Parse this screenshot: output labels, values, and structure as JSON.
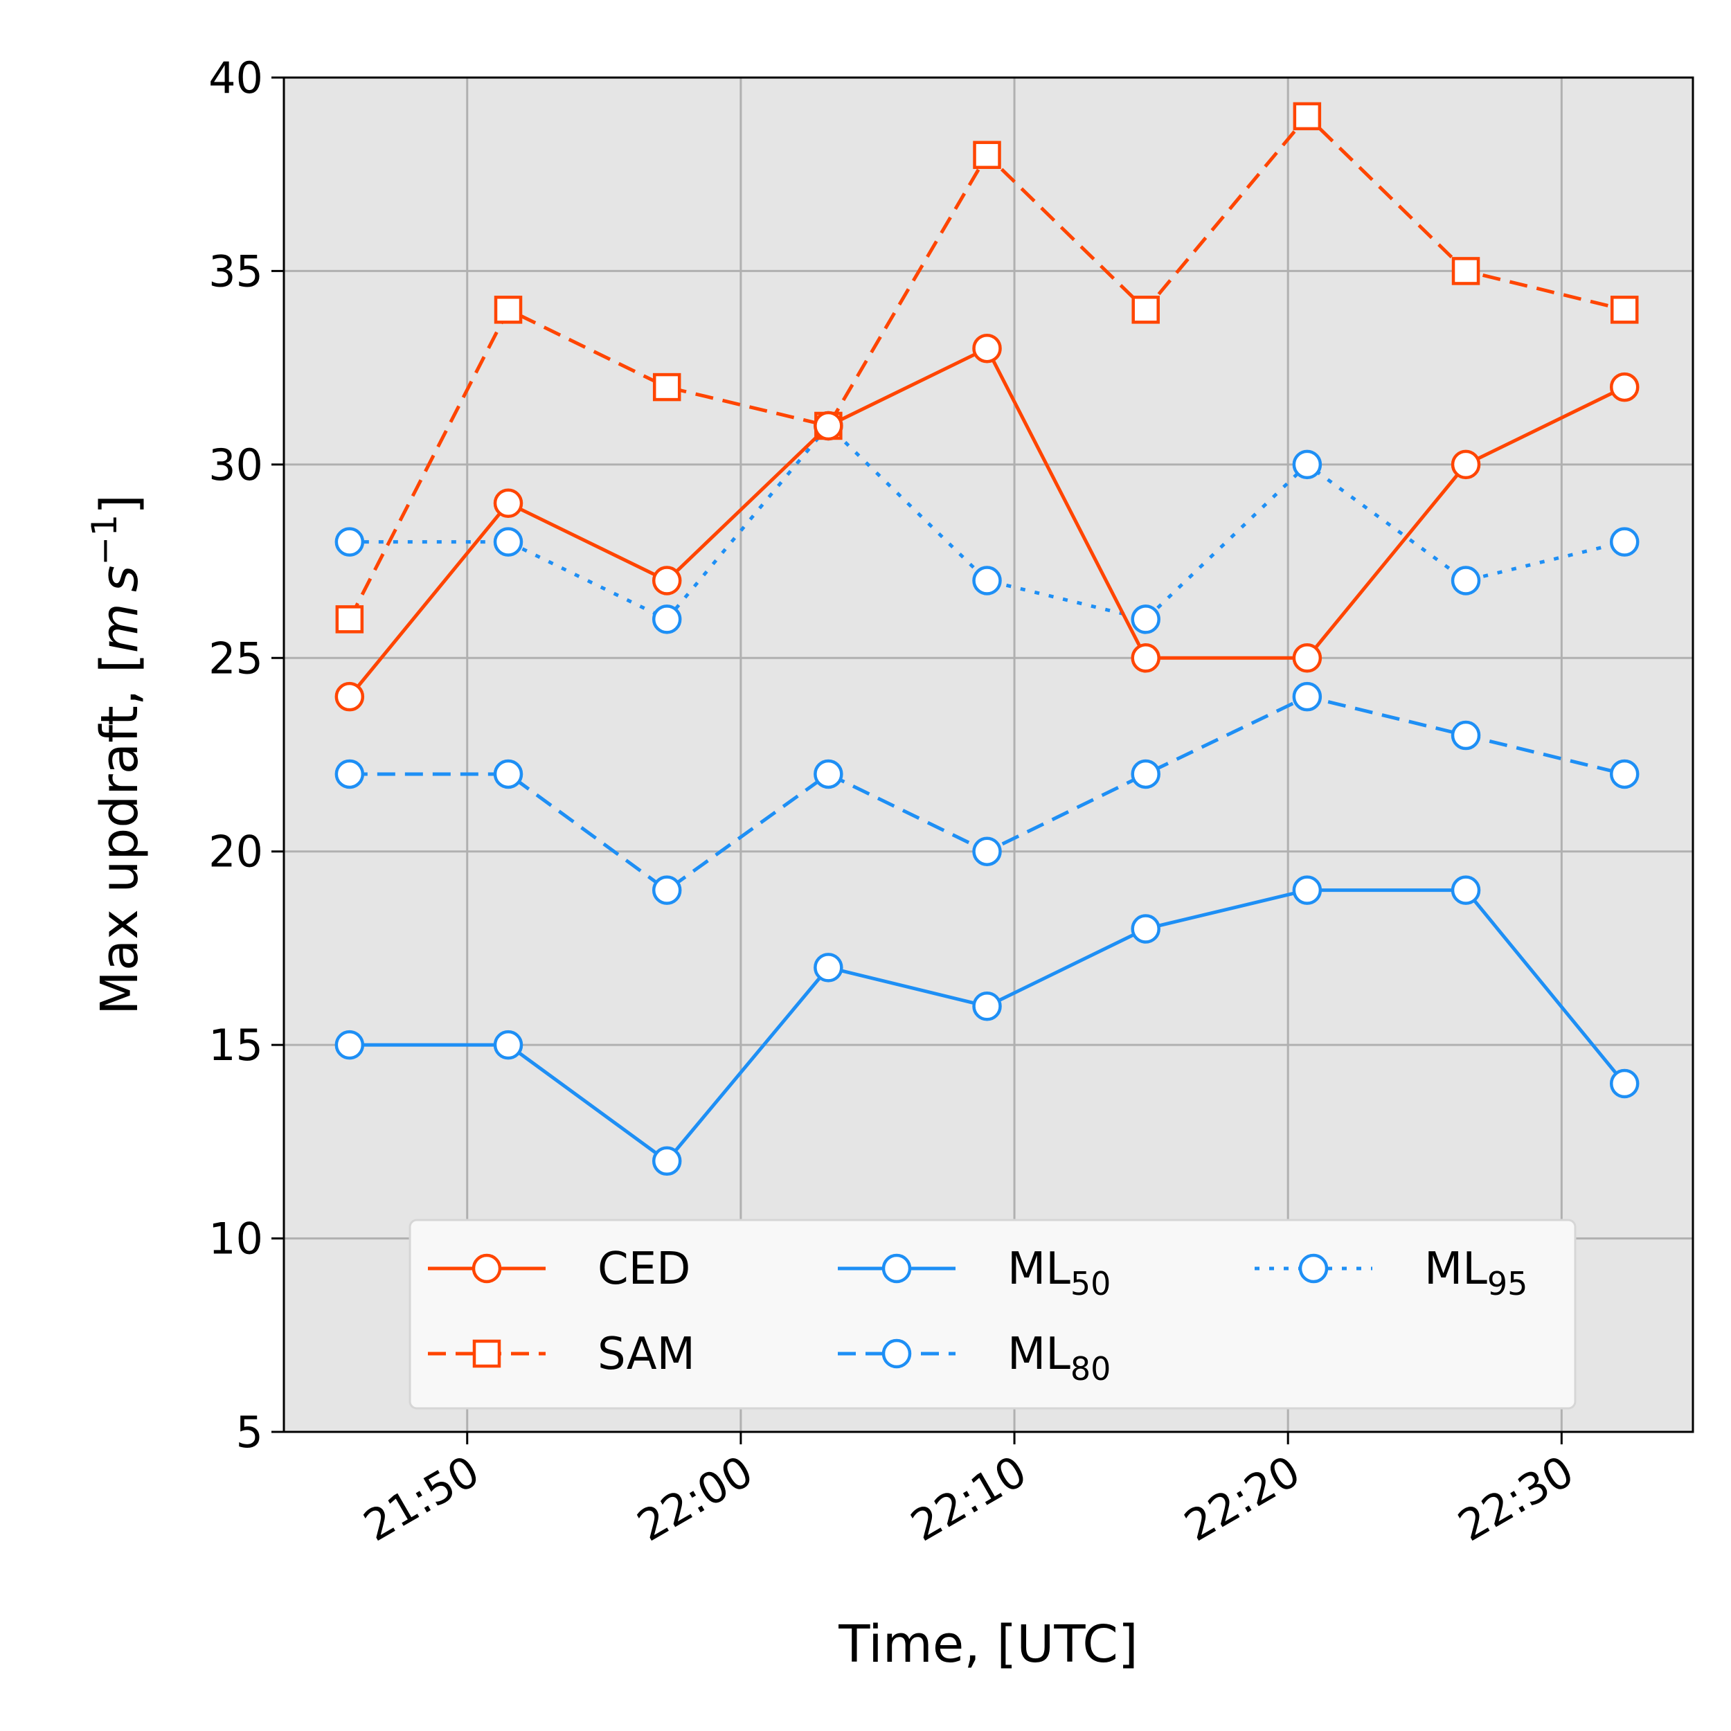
{
  "chart_data": {
    "type": "line",
    "title": "",
    "xlabel": "Time, [UTC]",
    "ylabel": "Max updraft, [m s⁻¹]",
    "ylabel_parts": {
      "main": "Max updraft, [",
      "unit_m": "m",
      "unit_s": "s",
      "exponent": "−1",
      "close": "]"
    },
    "ylim": [
      5,
      40
    ],
    "xlim_minutes": [
      1303.3,
      1354.8
    ],
    "grid": true,
    "background": "#e5e5e5",
    "legend_location": "lower-center",
    "legend_columns": 3,
    "x_minutes": [
      1305.7,
      1311.5,
      1317.3,
      1323.2,
      1329.0,
      1334.8,
      1340.7,
      1346.5,
      1352.3
    ],
    "x_ticks": [
      {
        "minutes": 1310,
        "label": "21:50"
      },
      {
        "minutes": 1320,
        "label": "22:00"
      },
      {
        "minutes": 1330,
        "label": "22:10"
      },
      {
        "minutes": 1340,
        "label": "22:20"
      },
      {
        "minutes": 1350,
        "label": "22:30"
      }
    ],
    "y_ticks": [
      5,
      10,
      15,
      20,
      25,
      30,
      35,
      40
    ],
    "series": [
      {
        "name": "CED",
        "base": "CED",
        "sub": "",
        "color": "#ff4500",
        "dash": "solid",
        "marker": "circle",
        "values": [
          24,
          29,
          27,
          31,
          33,
          25,
          25,
          30,
          32
        ]
      },
      {
        "name": "SAM",
        "base": "SAM",
        "sub": "",
        "color": "#ff4500",
        "dash": "dashed",
        "marker": "square",
        "values": [
          26,
          34,
          32,
          31,
          38,
          34,
          39,
          35,
          34
        ]
      },
      {
        "name": "ML50",
        "base": "ML",
        "sub": "50",
        "color": "#1e8ff5",
        "dash": "solid",
        "marker": "circle",
        "values": [
          15,
          15,
          12,
          17,
          16,
          18,
          19,
          19,
          14
        ]
      },
      {
        "name": "ML80",
        "base": "ML",
        "sub": "80",
        "color": "#1e8ff5",
        "dash": "dashed",
        "marker": "circle",
        "values": [
          22,
          22,
          19,
          22,
          20,
          22,
          24,
          23,
          22
        ]
      },
      {
        "name": "ML95",
        "base": "ML",
        "sub": "95",
        "color": "#1e8ff5",
        "dash": "dotted",
        "marker": "circle",
        "values": [
          28,
          28,
          26,
          31,
          27,
          26,
          30,
          27,
          28
        ]
      }
    ]
  }
}
